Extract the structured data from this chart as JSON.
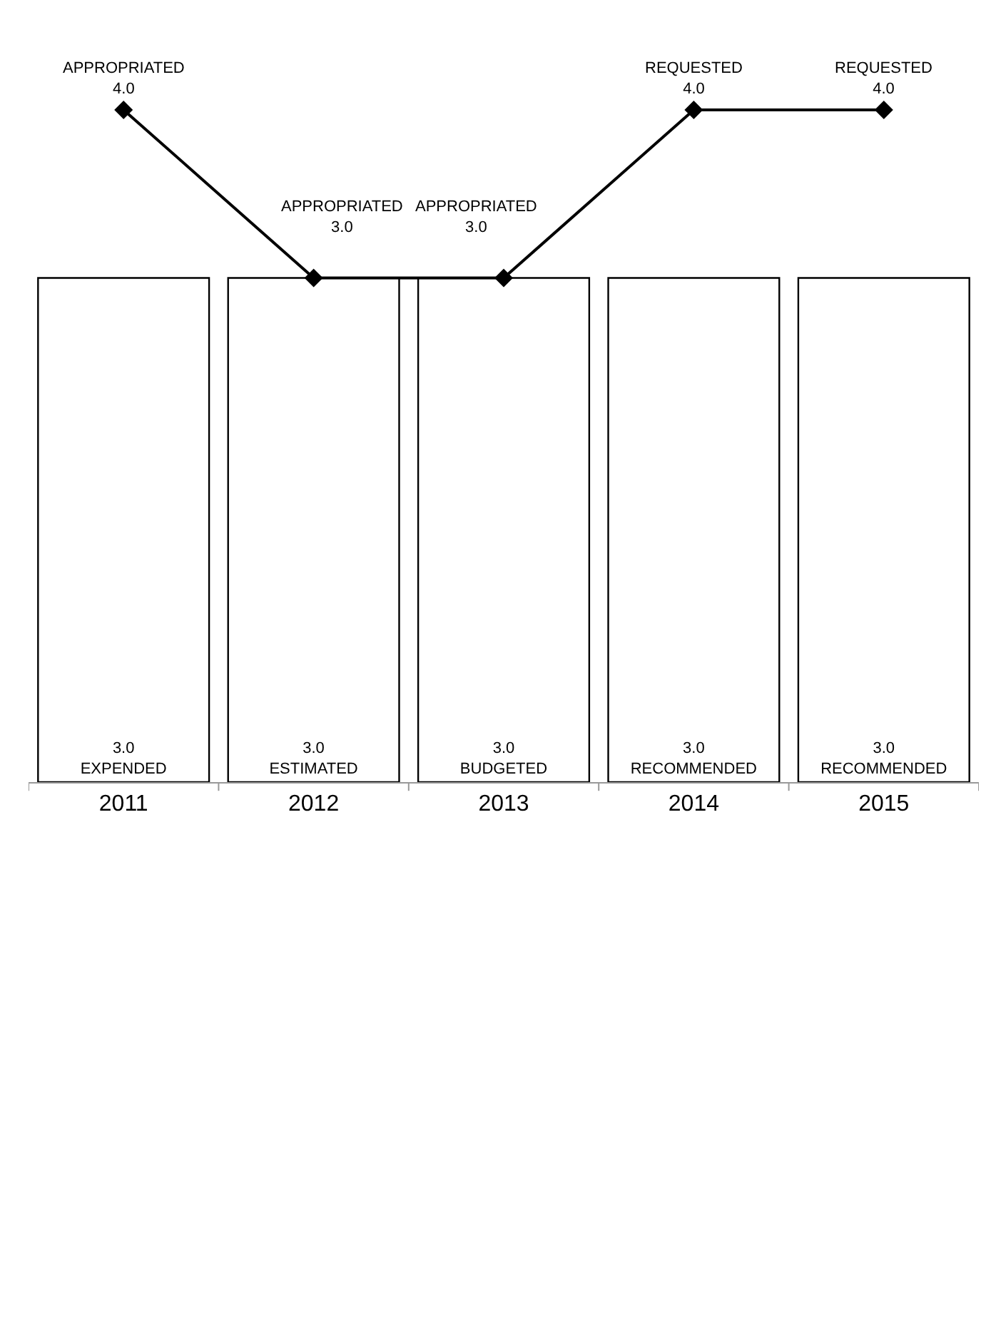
{
  "chart_data": {
    "type": "bar",
    "categories": [
      "2011",
      "2012",
      "2013",
      "2014",
      "2015"
    ],
    "tick_labels": "x",
    "series": [
      {
        "color": "#ffffff",
        "values": [
          3.0,
          3.0,
          3.0,
          3.0,
          3.0
        ],
        "value_labels": [
          "3.0\nEXPENDED",
          "3.0\nESTIMATED",
          "3.0\nBUDGETED",
          "3.0\nRECOMMENDED",
          "3.0\nRECOMMENDED"
        ]
      },
      {
        "type": "line",
        "color": "#000000",
        "marker": "diamond",
        "line_style": "solid",
        "values": [
          4.0,
          3.0,
          3.0,
          4.0,
          4.0
        ],
        "value_labels": [
          "APPROPRIATED\n4.0",
          "APPROPRIATED\n3.0",
          "APPROPRIATED\n3.0",
          "REQUESTED\n4.0",
          "REQUESTED\n4.0"
        ]
      }
    ]
  }
}
